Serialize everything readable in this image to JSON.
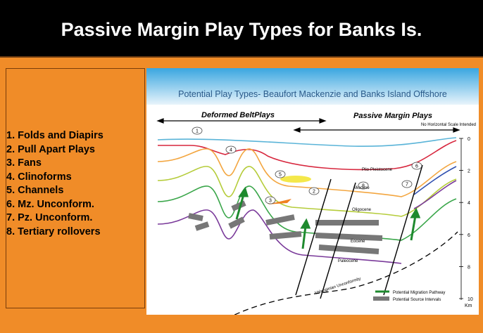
{
  "header": {
    "title": "Passive Margin Play Types for Banks Is."
  },
  "play_list": [
    "1. Folds and Diapirs",
    "2. Pull Apart Plays",
    "3. Fans",
    "4. Clinoforms",
    "5. Channels",
    "6. Mz. Unconform.",
    "7. Pz. Unconform.",
    "8. Tertiary rollovers"
  ],
  "diagram": {
    "title": "Potential Play Types- Beaufort Mackenzie and Banks Island Offshore",
    "region_labels": [
      "Deformed BeltPlays",
      "Passive Margin Plays"
    ],
    "scale_note": "No Horizontal Scale Intended",
    "depth_labels": [
      "0",
      "2",
      "4",
      "6",
      "8",
      "10"
    ],
    "depth_unit": "Km",
    "layer_labels": [
      "Plio-Pleistocene",
      "Miocene",
      "Oligocene",
      "Eocene",
      "Paleocene",
      "Valanginian Unconformity"
    ],
    "play_markers": [
      "1",
      "2",
      "3",
      "4",
      "5",
      "6",
      "7",
      "8"
    ],
    "legend": [
      "Potential Migration Pathway",
      "Potential Source Intervals"
    ]
  }
}
